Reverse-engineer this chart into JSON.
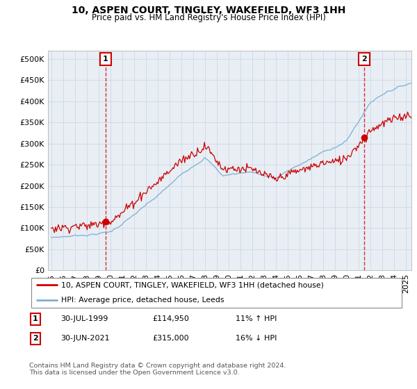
{
  "title": "10, ASPEN COURT, TINGLEY, WAKEFIELD, WF3 1HH",
  "subtitle": "Price paid vs. HM Land Registry's House Price Index (HPI)",
  "ytick_values": [
    0,
    50000,
    100000,
    150000,
    200000,
    250000,
    300000,
    350000,
    400000,
    450000,
    500000
  ],
  "ylim": [
    0,
    520000
  ],
  "xlim_start": 1994.7,
  "xlim_end": 2025.5,
  "hpi_color": "#7bafd4",
  "price_color": "#cc0000",
  "chart_bg": "#e8eef4",
  "purchase1_year": 1999,
  "purchase1_month": 7,
  "purchase1_price": 114950,
  "purchase2_year": 2021,
  "purchase2_month": 6,
  "purchase2_price": 315000,
  "legend_label1": "10, ASPEN COURT, TINGLEY, WAKEFIELD, WF3 1HH (detached house)",
  "legend_label2": "HPI: Average price, detached house, Leeds",
  "table_row1_num": "1",
  "table_row1_date": "30-JUL-1999",
  "table_row1_price": "£114,950",
  "table_row1_hpi": "11% ↑ HPI",
  "table_row2_num": "2",
  "table_row2_date": "30-JUN-2021",
  "table_row2_price": "£315,000",
  "table_row2_hpi": "16% ↓ HPI",
  "footer": "Contains HM Land Registry data © Crown copyright and database right 2024.\nThis data is licensed under the Open Government Licence v3.0.",
  "grid_color": "#c8d4e0",
  "annotation_color": "#cc0000"
}
